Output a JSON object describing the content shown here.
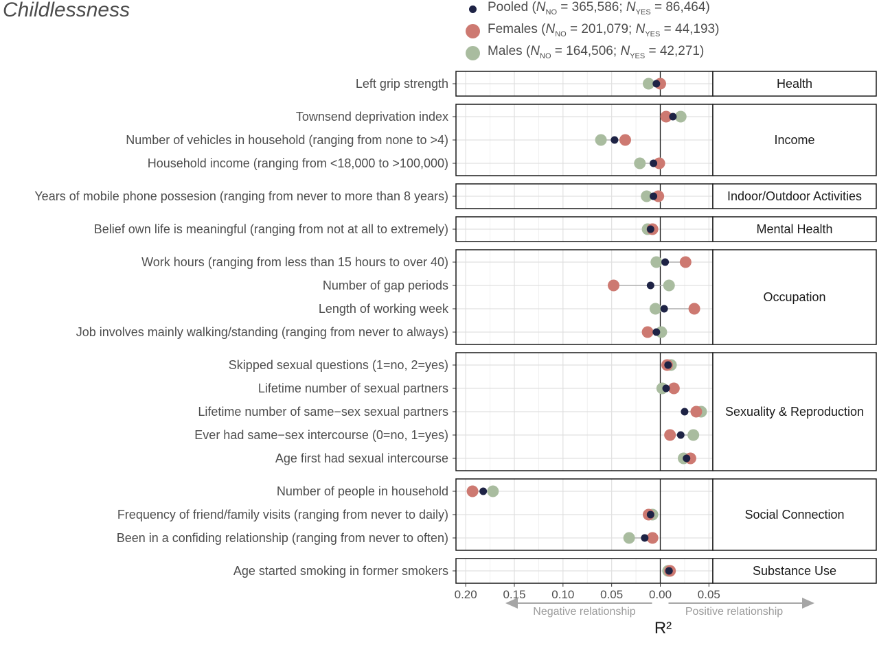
{
  "chart_data": {
    "type": "scatter",
    "title": "Childlessness",
    "xlabel": "R²",
    "xlim": [
      0.21,
      -0.054
    ],
    "x_axis_reversed": true,
    "x_ticks": [
      0.2,
      0.15,
      0.1,
      0.05,
      0.0,
      -0.05
    ],
    "x_tick_labels": [
      "0.20",
      "0.15",
      "0.10",
      "0.05",
      "0.00",
      "0.05"
    ],
    "reference_line": 0,
    "grid": true,
    "annotations": {
      "negative": "Negative relationship",
      "positive": "Positive relationship"
    },
    "series": [
      {
        "key": "males",
        "name": "Males",
        "color": "#a9bc9f",
        "legend_parts": [
          "Males (",
          "N",
          "NO",
          " = 164,506; ",
          "N",
          "YES",
          " = 42,271)"
        ]
      },
      {
        "key": "females",
        "name": "Females",
        "color": "#cd7971",
        "legend_parts": [
          "Females (",
          "N",
          "NO",
          " = 201,079; ",
          "N",
          "YES",
          " = 44,193)"
        ]
      },
      {
        "key": "pooled",
        "name": "Pooled",
        "color": "#1e2345",
        "legend_parts": [
          "Pooled (",
          "N",
          "NO",
          " = 365,586; ",
          "N",
          "YES",
          " = 86,464)"
        ]
      }
    ],
    "panels": [
      {
        "name": "Health",
        "rows": [
          {
            "label": "Left grip strength",
            "pooled": 0.004,
            "females": 0.0,
            "males": 0.012
          }
        ]
      },
      {
        "name": "Income",
        "rows": [
          {
            "label": "Townsend deprivation index",
            "pooled": -0.013,
            "females": -0.006,
            "males": -0.021
          },
          {
            "label": "Number of vehicles in household (ranging from none to >4)",
            "pooled": 0.047,
            "females": 0.036,
            "males": 0.061
          },
          {
            "label": "Household income (ranging from <18,000 to >100,000)",
            "pooled": 0.007,
            "females": 0.001,
            "males": 0.021
          }
        ]
      },
      {
        "name": "Indoor/Outdoor Activities",
        "rows": [
          {
            "label": "Years of mobile phone possesion (ranging from never to more than 8 years)",
            "pooled": 0.007,
            "females": 0.002,
            "males": 0.014
          }
        ]
      },
      {
        "name": "Mental Health",
        "rows": [
          {
            "label": "Belief own life is meaningful (ranging from not at all to extremely)",
            "pooled": 0.01,
            "females": 0.008,
            "males": 0.013
          }
        ]
      },
      {
        "name": "Occupation",
        "rows": [
          {
            "label": "Work hours (ranging from less than 15 hours to over 40)",
            "pooled": -0.005,
            "females": -0.026,
            "males": 0.004
          },
          {
            "label": "Number of gap periods",
            "pooled": 0.01,
            "females": 0.048,
            "males": -0.009
          },
          {
            "label": "Length of working week",
            "pooled": -0.004,
            "females": -0.035,
            "males": 0.005
          },
          {
            "label": "Job involves mainly walking/standing (ranging from never to always)",
            "pooled": 0.004,
            "females": 0.013,
            "males": -0.001
          }
        ]
      },
      {
        "name": "Sexuality & Reproduction",
        "rows": [
          {
            "label": "Skipped sexual questions (1=no, 2=yes)",
            "pooled": -0.008,
            "females": -0.007,
            "males": -0.011
          },
          {
            "label": "Lifetime number of sexual partners",
            "pooled": -0.006,
            "females": -0.014,
            "males": -0.002
          },
          {
            "label": "Lifetime number of same−sex sexual partners",
            "pooled": -0.025,
            "females": -0.037,
            "males": -0.042
          },
          {
            "label": "Ever had same−sex intercourse (0=no, 1=yes)",
            "pooled": -0.021,
            "females": -0.01,
            "males": -0.034
          },
          {
            "label": "Age first had sexual intercourse",
            "pooled": -0.027,
            "females": -0.031,
            "males": -0.024
          }
        ]
      },
      {
        "name": "Social Connection",
        "rows": [
          {
            "label": "Number of people in household",
            "pooled": 0.182,
            "females": 0.193,
            "males": 0.172
          },
          {
            "label": "Frequency of friend/family visits (ranging from never to daily)",
            "pooled": 0.01,
            "females": 0.012,
            "males": 0.008
          },
          {
            "label": "Been in a confiding relationship (ranging from never to often)",
            "pooled": 0.016,
            "females": 0.008,
            "males": 0.032
          }
        ]
      },
      {
        "name": "Substance Use",
        "rows": [
          {
            "label": "Age started smoking in former smokers",
            "pooled": -0.009,
            "females": -0.01,
            "males": -0.008
          }
        ]
      }
    ]
  }
}
